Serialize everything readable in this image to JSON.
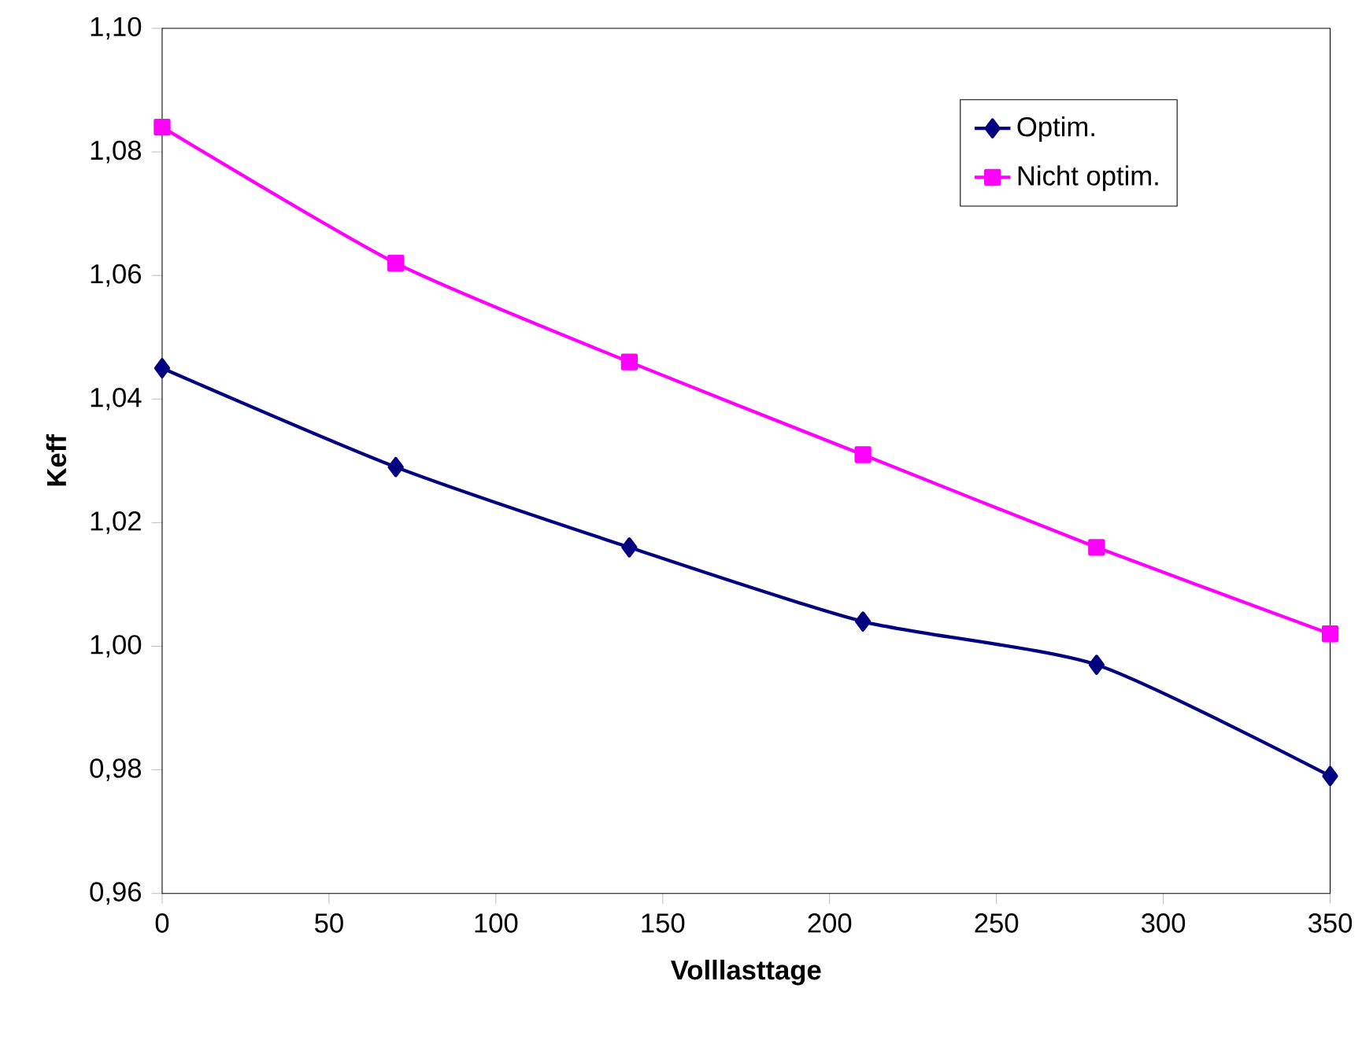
{
  "chart_data": {
    "type": "line",
    "xlabel": "Volllasttage",
    "ylabel": "Keff",
    "x": [
      0,
      70,
      140,
      210,
      280,
      350
    ],
    "series": [
      {
        "name": "Optim.",
        "color": "#000080",
        "marker": "diamond",
        "values": [
          1.045,
          1.029,
          1.016,
          1.004,
          0.997,
          0.979
        ]
      },
      {
        "name": "Nicht optim.",
        "color": "#ff00ff",
        "marker": "square",
        "values": [
          1.084,
          1.062,
          1.046,
          1.031,
          1.016,
          1.002
        ]
      }
    ],
    "xlim": [
      0,
      350
    ],
    "xticks": [
      0,
      50,
      100,
      150,
      200,
      250,
      300,
      350
    ],
    "ylim": [
      0.96,
      1.1
    ],
    "yticks": [
      {
        "value": 0.96,
        "label": "0,96"
      },
      {
        "value": 0.98,
        "label": "0,98"
      },
      {
        "value": 1.0,
        "label": "1,00"
      },
      {
        "value": 1.02,
        "label": "1,02"
      },
      {
        "value": 1.04,
        "label": "1,04"
      },
      {
        "value": 1.06,
        "label": "1,06"
      },
      {
        "value": 1.08,
        "label": "1,08"
      },
      {
        "value": 1.1,
        "label": "1,10"
      }
    ],
    "legend": "top right",
    "grid": false,
    "line_style": "solid"
  }
}
